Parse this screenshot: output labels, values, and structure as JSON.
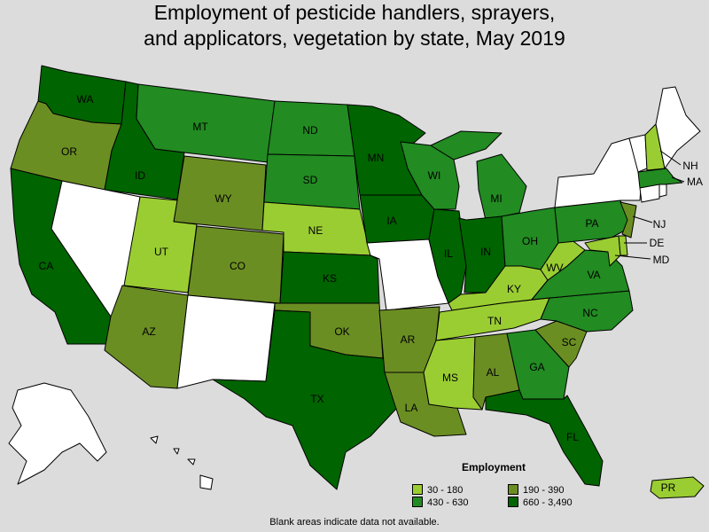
{
  "title_line1": "Employment of pesticide handlers, sprayers,",
  "title_line2": "and applicators, vegetation by state, May 2019",
  "legend": {
    "title": "Employment",
    "items": [
      {
        "label": "30 - 180",
        "color": "#9acd32"
      },
      {
        "label": "190 - 390",
        "color": "#6b8e23"
      },
      {
        "label": "430 - 630",
        "color": "#228b22"
      },
      {
        "label": "660 - 3,490",
        "color": "#006400"
      }
    ]
  },
  "note": "Blank areas indicate data not available.",
  "colors": {
    "no_data": "#ffffff",
    "background": "#dcdcdc"
  },
  "states": [
    {
      "abbr": "WA",
      "label": "WA",
      "bin": 3
    },
    {
      "abbr": "OR",
      "label": "OR",
      "bin": 1
    },
    {
      "abbr": "CA",
      "label": "CA",
      "bin": 3
    },
    {
      "abbr": "ID",
      "label": "ID",
      "bin": 3
    },
    {
      "abbr": "NV",
      "label": "",
      "bin": null
    },
    {
      "abbr": "MT",
      "label": "MT",
      "bin": 2
    },
    {
      "abbr": "WY",
      "label": "WY",
      "bin": 1
    },
    {
      "abbr": "UT",
      "label": "UT",
      "bin": 0
    },
    {
      "abbr": "CO",
      "label": "CO",
      "bin": 1
    },
    {
      "abbr": "AZ",
      "label": "AZ",
      "bin": 1
    },
    {
      "abbr": "NM",
      "label": "",
      "bin": null
    },
    {
      "abbr": "ND",
      "label": "ND",
      "bin": 2
    },
    {
      "abbr": "SD",
      "label": "SD",
      "bin": 2
    },
    {
      "abbr": "NE",
      "label": "NE",
      "bin": 0
    },
    {
      "abbr": "KS",
      "label": "KS",
      "bin": 3
    },
    {
      "abbr": "OK",
      "label": "OK",
      "bin": 1
    },
    {
      "abbr": "TX",
      "label": "TX",
      "bin": 3
    },
    {
      "abbr": "MN",
      "label": "MN",
      "bin": 3
    },
    {
      "abbr": "IA",
      "label": "IA",
      "bin": 3
    },
    {
      "abbr": "MO",
      "label": "",
      "bin": null
    },
    {
      "abbr": "AR",
      "label": "AR",
      "bin": 1
    },
    {
      "abbr": "LA",
      "label": "LA",
      "bin": 1
    },
    {
      "abbr": "WI",
      "label": "WI",
      "bin": 2
    },
    {
      "abbr": "IL",
      "label": "IL",
      "bin": 3
    },
    {
      "abbr": "MI",
      "label": "MI",
      "bin": 2
    },
    {
      "abbr": "IN",
      "label": "IN",
      "bin": 3
    },
    {
      "abbr": "OH",
      "label": "OH",
      "bin": 2
    },
    {
      "abbr": "KY",
      "label": "KY",
      "bin": 0
    },
    {
      "abbr": "TN",
      "label": "TN",
      "bin": 0
    },
    {
      "abbr": "MS",
      "label": "MS",
      "bin": 0
    },
    {
      "abbr": "AL",
      "label": "AL",
      "bin": 1
    },
    {
      "abbr": "GA",
      "label": "GA",
      "bin": 2
    },
    {
      "abbr": "FL",
      "label": "FL",
      "bin": 3
    },
    {
      "abbr": "SC",
      "label": "SC",
      "bin": 1
    },
    {
      "abbr": "NC",
      "label": "NC",
      "bin": 2
    },
    {
      "abbr": "VA",
      "label": "VA",
      "bin": 2
    },
    {
      "abbr": "WV",
      "label": "WV",
      "bin": 0
    },
    {
      "abbr": "PA",
      "label": "PA",
      "bin": 2
    },
    {
      "abbr": "NY",
      "label": "",
      "bin": null
    },
    {
      "abbr": "VT",
      "label": "",
      "bin": null
    },
    {
      "abbr": "NH",
      "label": "NH",
      "bin": 0
    },
    {
      "abbr": "ME",
      "label": "",
      "bin": null
    },
    {
      "abbr": "MA",
      "label": "MA",
      "bin": 2
    },
    {
      "abbr": "CT",
      "label": "",
      "bin": null
    },
    {
      "abbr": "RI",
      "label": "",
      "bin": null
    },
    {
      "abbr": "NJ",
      "label": "NJ",
      "bin": 1
    },
    {
      "abbr": "DE",
      "label": "DE",
      "bin": 0
    },
    {
      "abbr": "MD",
      "label": "MD",
      "bin": 0
    },
    {
      "abbr": "AK",
      "label": "",
      "bin": null
    },
    {
      "abbr": "HI",
      "label": "",
      "bin": null
    },
    {
      "abbr": "PR",
      "label": "PR",
      "bin": 0
    }
  ]
}
